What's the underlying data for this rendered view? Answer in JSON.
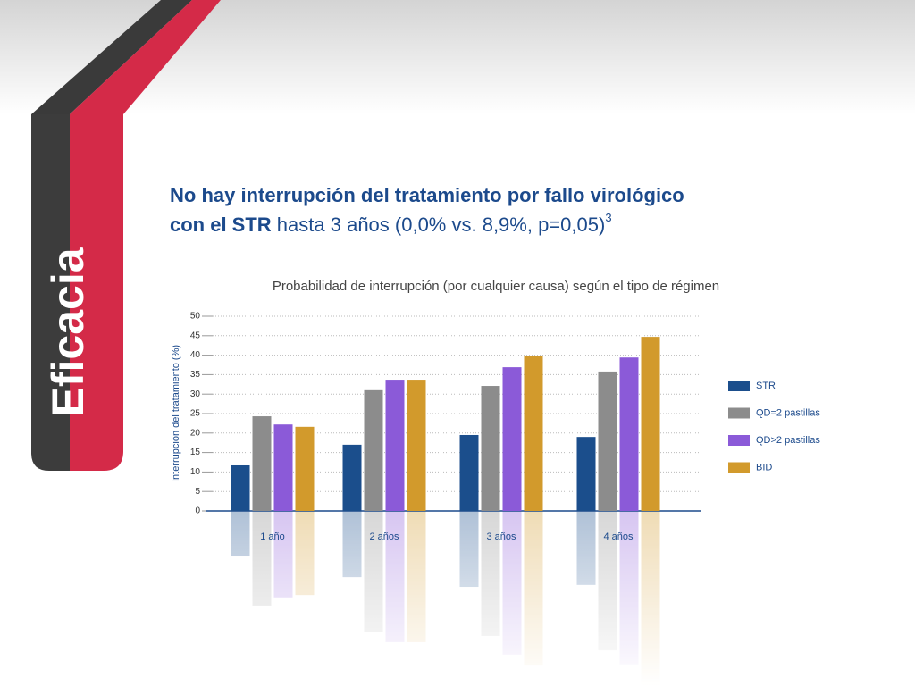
{
  "side_label": "Eficacia",
  "headline": {
    "line1": "No hay interrupción del tratamiento por fallo virológico",
    "bold": "con el STR",
    "rest": " hasta 3 años (0,0% vs. 8,9%, p=0,05)",
    "sup": "3"
  },
  "chart_data": {
    "type": "bar",
    "title": "Probabilidad de interrupción (por cualquier causa) según el tipo de régimen",
    "y_label": "Interrupción del tratamiento (%)",
    "categories": [
      "1 año",
      "2 años",
      "3 años",
      "4 años"
    ],
    "series": [
      {
        "name": "STR",
        "color": "#1b4e8c",
        "values": [
          11.7,
          17.0,
          19.5,
          19.0
        ]
      },
      {
        "name": "QD=2 pastillas",
        "color": "#8c8c8c",
        "values": [
          24.3,
          31.0,
          32.1,
          35.8
        ]
      },
      {
        "name": "QD>2 pastillas",
        "color": "#8b5ad8",
        "values": [
          22.2,
          33.7,
          36.9,
          39.4
        ]
      },
      {
        "name": "BID",
        "color": "#d29a2c",
        "values": [
          21.6,
          33.7,
          39.7,
          44.7
        ]
      }
    ],
    "ylim": [
      0,
      50
    ],
    "yticks": [
      0,
      5,
      10,
      15,
      20,
      25,
      30,
      35,
      40,
      45,
      50
    ],
    "grid": true,
    "legend": "right"
  }
}
